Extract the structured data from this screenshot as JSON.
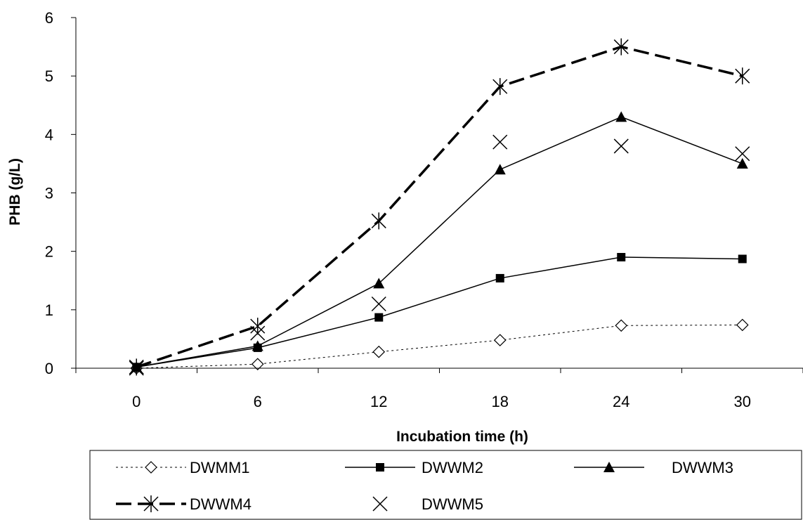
{
  "chart_data": {
    "type": "line",
    "xlabel": "Incubation time (h)",
    "ylabel": "PHB (g/L)",
    "categories": [
      "0",
      "6",
      "12",
      "18",
      "24",
      "30"
    ],
    "ylim": [
      0,
      6
    ],
    "yticks": [
      "0",
      "1",
      "2",
      "3",
      "4",
      "5",
      "6"
    ],
    "grid": false,
    "legend_position": "bottom",
    "series": [
      {
        "name": "DWMM1",
        "values": [
          0,
          0.07,
          0.28,
          0.48,
          0.73,
          0.74
        ],
        "line": "dotted",
        "marker": "diamond-open"
      },
      {
        "name": "DWWM2",
        "values": [
          0.02,
          0.35,
          0.87,
          1.54,
          1.9,
          1.87
        ],
        "line": "solid",
        "marker": "square-filled"
      },
      {
        "name": "DWWM3",
        "values": [
          0.02,
          0.38,
          1.45,
          3.4,
          4.3,
          3.5
        ],
        "line": "solid",
        "marker": "triangle-filled"
      },
      {
        "name": "DWWM4",
        "values": [
          0.02,
          0.72,
          2.52,
          4.82,
          5.5,
          5.0
        ],
        "line": "dashed-thick",
        "marker": "asterisk"
      },
      {
        "name": "DWWM5",
        "values": [
          0,
          0.6,
          1.1,
          3.87,
          3.8,
          3.67
        ],
        "line": "none",
        "marker": "x"
      }
    ],
    "colors": {
      "line": "#000000",
      "background": "#ffffff"
    }
  }
}
